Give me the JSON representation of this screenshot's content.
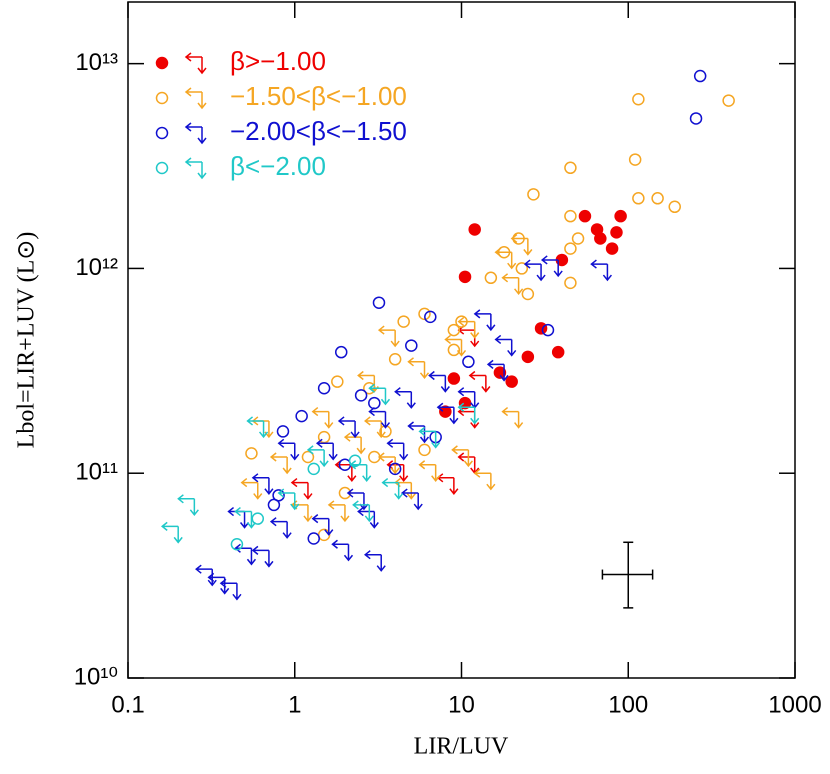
{
  "chart_data": {
    "type": "scatter",
    "x_label": "LIR/LUV",
    "y_label": "Lbol=LIR+LUV  (L⊙)",
    "xlog": true,
    "ylog": true,
    "xlim": [
      0.1,
      1000
    ],
    "ylim": [
      10000000000.0,
      20000000000000.0
    ],
    "xticks": [
      0.1,
      1,
      10,
      100,
      1000
    ],
    "yticks": [
      {
        "value": 10000000000.0,
        "label": "10¹⁰"
      },
      {
        "value": 100000000000.0,
        "label": "10¹¹"
      },
      {
        "value": 1000000000000.0,
        "label": "10¹²"
      },
      {
        "value": 10000000000000.0,
        "label": "10¹³"
      }
    ],
    "legend": "upper left",
    "series": [
      {
        "name": "β>−1.00",
        "color": "#ee0000",
        "filled": true,
        "detections": {
          "x": [
            12,
            10.5,
            55,
            65,
            68,
            80,
            85,
            90,
            40,
            30,
            38,
            20,
            17,
            9,
            10.5,
            8,
            25
          ],
          "y": [
            1550000000000.0,
            910000000000.0,
            1800000000000.0,
            1550000000000.0,
            1400000000000.0,
            1250000000000.0,
            1500000000000.0,
            1800000000000.0,
            1100000000000.0,
            510000000000.0,
            390000000000.0,
            280000000000.0,
            310000000000.0,
            290000000000.0,
            220000000000.0,
            200000000000.0,
            370000000000.0
          ]
        },
        "upper_limits": {
          "x": [
            12,
            14,
            12,
            12,
            9,
            4.5,
            2.2,
            1.2
          ],
          "y": [
            500000000000.0,
            300000000000.0,
            200000000000.0,
            120000000000.0,
            95000000000.0,
            110000000000.0,
            110000000000.0,
            90000000000.0
          ]
        }
      },
      {
        "name": "−1.50<β<−1.00",
        "color": "#f5a623",
        "filled": false,
        "detections": {
          "x": [
            115,
            400,
            110,
            45,
            27,
            115,
            150,
            190,
            45,
            50,
            45,
            22,
            18,
            23,
            15,
            45,
            25,
            10,
            9,
            6,
            4.5,
            9,
            4,
            2.8,
            1.8,
            3,
            1.5,
            0.55,
            1.5,
            1.2,
            2,
            6,
            3.5
          ],
          "y": [
            6700000000000.0,
            6600000000000.0,
            3400000000000.0,
            3100000000000.0,
            2300000000000.0,
            2200000000000.0,
            2200000000000.0,
            2000000000000.0,
            1800000000000.0,
            1400000000000.0,
            1250000000000.0,
            1400000000000.0,
            1200000000000.0,
            1000000000000.0,
            900000000000.0,
            850000000000.0,
            750000000000.0,
            550000000000.0,
            500000000000.0,
            600000000000.0,
            550000000000.0,
            400000000000.0,
            360000000000.0,
            260000000000.0,
            280000000000.0,
            120000000000.0,
            150000000000.0,
            125000000000.0,
            50000000000.0,
            120000000000.0,
            80000000000.0,
            130000000000.0,
            160000000000.0
          ]
        },
        "upper_limits": {
          "x": [
            25,
            20,
            22,
            12,
            4,
            10,
            6,
            3,
            22,
            11,
            15,
            0.7,
            0.9,
            0.6,
            2.5,
            4,
            1.2,
            2,
            5,
            7,
            3.3,
            1.6
          ],
          "y": [
            1400000000000.0,
            1200000000000.0,
            900000000000.0,
            550000000000.0,
            500000000000.0,
            450000000000.0,
            350000000000.0,
            300000000000.0,
            200000000000.0,
            130000000000.0,
            100000000000.0,
            180000000000.0,
            120000000000.0,
            90000000000.0,
            150000000000.0,
            120000000000.0,
            70000000000.0,
            70000000000.0,
            90000000000.0,
            110000000000.0,
            180000000000.0,
            200000000000.0
          ]
        }
      },
      {
        "name": "−2.00<β<−1.50",
        "color": "#1010d0",
        "filled": false,
        "detections": {
          "x": [
            270,
            255,
            33,
            3.2,
            6.5,
            1.9,
            5,
            11,
            1.5,
            2.5,
            3,
            0.85,
            1.1,
            0.8,
            0.75,
            1.3,
            2,
            4,
            7
          ],
          "y": [
            8700000000000.0,
            5400000000000.0,
            500000000000.0,
            680000000000.0,
            580000000000.0,
            390000000000.0,
            420000000000.0,
            350000000000.0,
            260000000000.0,
            240000000000.0,
            220000000000.0,
            160000000000.0,
            190000000000.0,
            78000000000.0,
            70000000000.0,
            48000000000.0,
            110000000000.0,
            105000000000.0,
            150000000000.0
          ]
        },
        "upper_limits": {
          "x": [
            75,
            38,
            30,
            15,
            20,
            18,
            8,
            5,
            3.5,
            2.3,
            1.7,
            1,
            0.7,
            0.5,
            0.55,
            0.7,
            0.32,
            0.38,
            0.45,
            0.9,
            1.6,
            2.6,
            4.5,
            6,
            9,
            12,
            3,
            2.1,
            3.3,
            5.5
          ],
          "y": [
            1050000000000.0,
            1100000000000.0,
            1050000000000.0,
            600000000000.0,
            450000000000.0,
            340000000000.0,
            300000000000.0,
            250000000000.0,
            200000000000.0,
            180000000000.0,
            140000000000.0,
            140000000000.0,
            95000000000.0,
            65000000000.0,
            43000000000.0,
            42000000000.0,
            34000000000.0,
            31000000000.0,
            29000000000.0,
            58000000000.0,
            60000000000.0,
            80000000000.0,
            140000000000.0,
            170000000000.0,
            210000000000.0,
            250000000000.0,
            65000000000.0,
            45000000000.0,
            40000000000.0,
            80000000000.0
          ]
        }
      },
      {
        "name": "β<−2.00",
        "color": "#20c8c8",
        "filled": false,
        "detections": {
          "x": [
            0.45,
            0.6,
            1.3,
            2.3
          ],
          "y": [
            45000000000.0,
            60000000000.0,
            105000000000.0,
            115000000000.0
          ]
        },
        "upper_limits": {
          "x": [
            0.2,
            0.25,
            0.65,
            0.55,
            1,
            1.5,
            2.7,
            3.5,
            7,
            12,
            4.2,
            2.8
          ],
          "y": [
            55000000000.0,
            75000000000.0,
            180000000000.0,
            65000000000.0,
            80000000000.0,
            130000000000.0,
            110000000000.0,
            260000000000.0,
            160000000000.0,
            210000000000.0,
            90000000000.0,
            70000000000.0
          ]
        }
      }
    ],
    "error_bar": {
      "x": 100,
      "y": 32000000000.0,
      "xerr": [
        70,
        140
      ],
      "yerr": [
        22000000000.0,
        46000000000.0
      ]
    }
  }
}
